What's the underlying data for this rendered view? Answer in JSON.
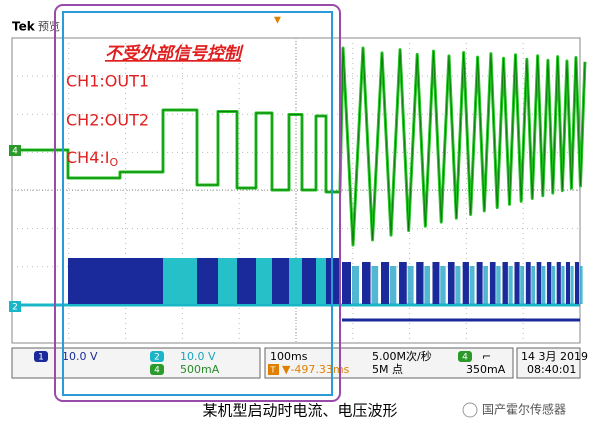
{
  "header": {
    "brand": "Tek",
    "mode": "预览"
  },
  "annotations": {
    "title": "不受外部信号控制",
    "ch1": "CH1:OUT1",
    "ch2": "CH2:OUT2",
    "ch4": "CH4:I",
    "ch4_sub": "O"
  },
  "markers": {
    "ch4": "4",
    "ch2": "2"
  },
  "status": {
    "ch1_num": "1",
    "ch1_scale": "10.0 V",
    "ch2_num": "2",
    "ch2_scale": "10.0 V",
    "ch4_num": "4",
    "ch4_scale": "500mA",
    "timebase": "100ms",
    "sample_rate": "5.00M次/秒",
    "trigger_icon": "T",
    "trigger_pos": "▼-497.33ms",
    "record": "5M 点",
    "trig_ch": "4",
    "trig_level": "350mA",
    "date": "14 3月 2019",
    "time": "08:40:01"
  },
  "caption": "某机型启动时电流、电压波形",
  "watermark": "国产霍尔传感器"
}
